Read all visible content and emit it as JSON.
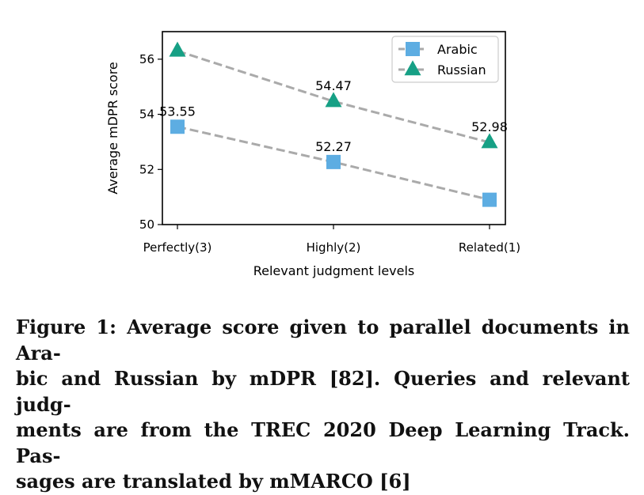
{
  "chart_data": {
    "type": "line",
    "categories": [
      "Perfectly(3)",
      "Highly(2)",
      "Related(1)"
    ],
    "series": [
      {
        "name": "Arabic",
        "values": [
          53.55,
          52.27,
          50.9
        ],
        "labels": [
          "53.55",
          "52.27",
          ""
        ],
        "color": "#5DADE2",
        "marker": "square"
      },
      {
        "name": "Russian",
        "values": [
          56.3,
          54.47,
          52.98
        ],
        "labels": [
          "",
          "54.47",
          "52.98"
        ],
        "color": "#16A085",
        "marker": "triangle"
      }
    ],
    "line_color": "#AAAAAA",
    "line_style": "dashed",
    "xlabel": "Relevant judgment levels",
    "ylabel": "Average mDPR score",
    "ylim": [
      50,
      57
    ],
    "yticks": [
      50,
      52,
      54,
      56
    ],
    "legend_position": "top-right",
    "grid": false
  },
  "caption": "Figure 1: Average score given to parallel documents in Ara-\nbic and Russian by mDPR [82]. Queries and relevant judg-\nments are from the TREC 2020 Deep Learning Track. Pas-\nsages are translated by mMARCO [6]"
}
